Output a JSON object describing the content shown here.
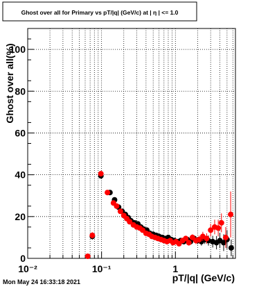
{
  "chart_data": {
    "type": "scatter",
    "title": "Ghost over all for Primary vs pT/|q| (GeV/c) at | η | <= 1.0",
    "xlabel": "pT/|q| (GeV/c)",
    "ylabel": "Ghost over all(%)",
    "x_scale": "log",
    "xlim": [
      0.01,
      6.5
    ],
    "ylim": [
      0,
      110
    ],
    "x_tick_labels": [
      "10⁻²",
      "10⁻¹",
      "1"
    ],
    "x_tick_values": [
      0.01,
      0.1,
      1
    ],
    "y_ticks": [
      0,
      20,
      40,
      60,
      80,
      100
    ],
    "grid": true,
    "footer_text": "Mon May 24 16:33:18 2021",
    "series": [
      {
        "color": "#000000",
        "points": [
          {
            "x": 0.075,
            "y": 10.5,
            "err": 1.5
          },
          {
            "x": 0.098,
            "y": 39.5,
            "err": 1.2
          },
          {
            "x": 0.13,
            "y": 31.5,
            "err": 1.0
          },
          {
            "x": 0.15,
            "y": 28.0,
            "err": 0.8
          },
          {
            "x": 0.17,
            "y": 24.5,
            "err": 0.7
          },
          {
            "x": 0.19,
            "y": 22.5,
            "err": 0.7
          },
          {
            "x": 0.21,
            "y": 21.0,
            "err": 0.6
          },
          {
            "x": 0.23,
            "y": 19.5,
            "err": 0.6
          },
          {
            "x": 0.25,
            "y": 18.0,
            "err": 0.6
          },
          {
            "x": 0.28,
            "y": 17.0,
            "err": 0.6
          },
          {
            "x": 0.31,
            "y": 16.5,
            "err": 0.6
          },
          {
            "x": 0.34,
            "y": 15.0,
            "err": 0.6
          },
          {
            "x": 0.37,
            "y": 14.0,
            "err": 0.6
          },
          {
            "x": 0.41,
            "y": 13.5,
            "err": 0.6
          },
          {
            "x": 0.45,
            "y": 12.0,
            "err": 0.6
          },
          {
            "x": 0.5,
            "y": 11.5,
            "err": 0.6
          },
          {
            "x": 0.55,
            "y": 11.0,
            "err": 0.7
          },
          {
            "x": 0.6,
            "y": 10.5,
            "err": 0.7
          },
          {
            "x": 0.66,
            "y": 10.0,
            "err": 0.7
          },
          {
            "x": 0.73,
            "y": 9.5,
            "err": 0.8
          },
          {
            "x": 0.8,
            "y": 10.0,
            "err": 0.8
          },
          {
            "x": 0.88,
            "y": 9.0,
            "err": 0.9
          },
          {
            "x": 0.97,
            "y": 8.5,
            "err": 1.0
          },
          {
            "x": 1.07,
            "y": 8.0,
            "err": 1.0
          },
          {
            "x": 1.18,
            "y": 8.5,
            "err": 1.1
          },
          {
            "x": 1.3,
            "y": 8.0,
            "err": 1.2
          },
          {
            "x": 1.45,
            "y": 9.0,
            "err": 1.3
          },
          {
            "x": 1.6,
            "y": 8.0,
            "err": 1.4
          },
          {
            "x": 1.8,
            "y": 9.5,
            "err": 1.5
          },
          {
            "x": 2.0,
            "y": 8.5,
            "err": 1.7
          },
          {
            "x": 2.25,
            "y": 8.0,
            "err": 1.9
          },
          {
            "x": 2.5,
            "y": 9.0,
            "err": 2.1
          },
          {
            "x": 2.8,
            "y": 8.5,
            "err": 2.4
          },
          {
            "x": 3.2,
            "y": 8.0,
            "err": 2.8
          },
          {
            "x": 3.6,
            "y": 7.5,
            "err": 3.2
          },
          {
            "x": 4.0,
            "y": 8.5,
            "err": 3.6
          },
          {
            "x": 4.5,
            "y": 7.5,
            "err": 4.0
          },
          {
            "x": 5.0,
            "y": 9.0,
            "err": 4.5
          },
          {
            "x": 5.7,
            "y": 5.0,
            "err": 4.0
          }
        ]
      },
      {
        "color": "#ff0000",
        "points": [
          {
            "x": 0.065,
            "y": 1.0,
            "err": 0.8
          },
          {
            "x": 0.075,
            "y": 11.0,
            "err": 1.5
          },
          {
            "x": 0.098,
            "y": 40.5,
            "err": 1.2
          },
          {
            "x": 0.12,
            "y": 31.5,
            "err": 1.0
          },
          {
            "x": 0.145,
            "y": 26.5,
            "err": 0.8
          },
          {
            "x": 0.16,
            "y": 25.0,
            "err": 0.7
          },
          {
            "x": 0.18,
            "y": 22.5,
            "err": 0.7
          },
          {
            "x": 0.2,
            "y": 20.5,
            "err": 0.6
          },
          {
            "x": 0.22,
            "y": 19.0,
            "err": 0.6
          },
          {
            "x": 0.24,
            "y": 17.5,
            "err": 0.6
          },
          {
            "x": 0.27,
            "y": 16.0,
            "err": 0.6
          },
          {
            "x": 0.3,
            "y": 15.0,
            "err": 0.6
          },
          {
            "x": 0.33,
            "y": 14.5,
            "err": 0.6
          },
          {
            "x": 0.36,
            "y": 13.5,
            "err": 0.6
          },
          {
            "x": 0.4,
            "y": 12.0,
            "err": 0.6
          },
          {
            "x": 0.44,
            "y": 11.5,
            "err": 0.6
          },
          {
            "x": 0.48,
            "y": 10.5,
            "err": 0.6
          },
          {
            "x": 0.53,
            "y": 10.0,
            "err": 0.7
          },
          {
            "x": 0.58,
            "y": 9.5,
            "err": 0.7
          },
          {
            "x": 0.64,
            "y": 9.0,
            "err": 0.7
          },
          {
            "x": 0.7,
            "y": 8.5,
            "err": 0.8
          },
          {
            "x": 0.77,
            "y": 8.0,
            "err": 0.8
          },
          {
            "x": 0.85,
            "y": 8.5,
            "err": 0.9
          },
          {
            "x": 0.93,
            "y": 7.5,
            "err": 1.0
          },
          {
            "x": 1.02,
            "y": 8.0,
            "err": 1.0
          },
          {
            "x": 1.12,
            "y": 7.0,
            "err": 1.1
          },
          {
            "x": 1.25,
            "y": 8.5,
            "err": 1.2
          },
          {
            "x": 1.38,
            "y": 9.5,
            "err": 1.3
          },
          {
            "x": 1.52,
            "y": 7.5,
            "err": 1.4
          },
          {
            "x": 1.7,
            "y": 10.0,
            "err": 1.5
          },
          {
            "x": 1.9,
            "y": 8.5,
            "err": 1.7
          },
          {
            "x": 2.1,
            "y": 9.0,
            "err": 1.9
          },
          {
            "x": 2.35,
            "y": 10.5,
            "err": 2.2
          },
          {
            "x": 2.65,
            "y": 9.5,
            "err": 2.5
          },
          {
            "x": 3.0,
            "y": 13.5,
            "err": 3.0
          },
          {
            "x": 3.4,
            "y": 15.0,
            "err": 3.5
          },
          {
            "x": 3.8,
            "y": 14.5,
            "err": 4.0
          },
          {
            "x": 4.2,
            "y": 17.0,
            "err": 4.5
          },
          {
            "x": 4.8,
            "y": 10.0,
            "err": 5.0
          },
          {
            "x": 5.6,
            "y": 21.0,
            "err": 11.0
          }
        ]
      }
    ]
  }
}
